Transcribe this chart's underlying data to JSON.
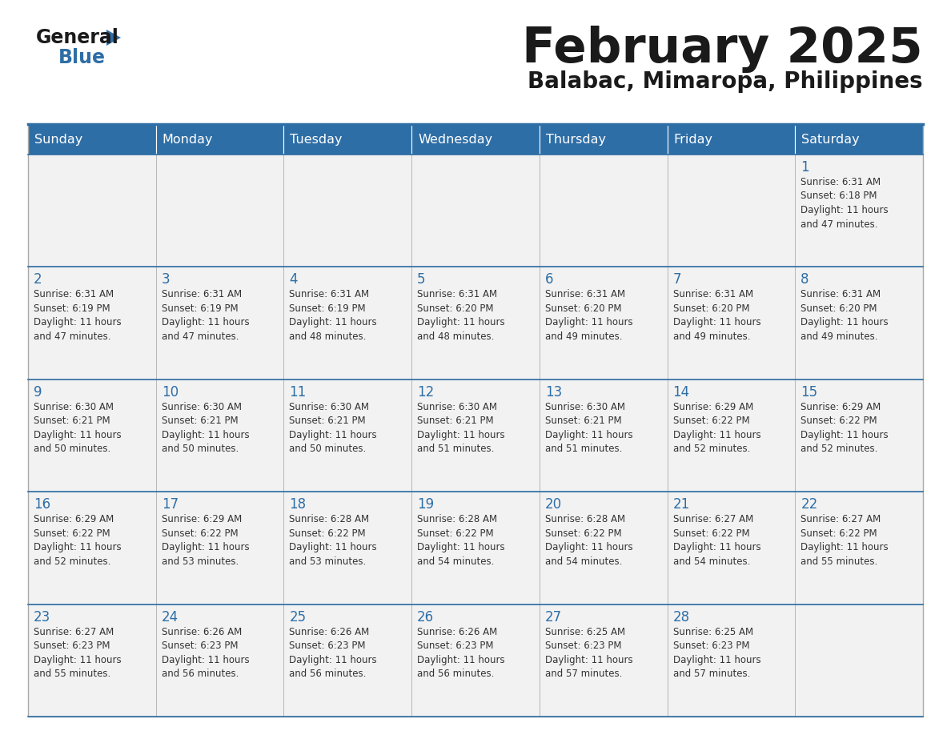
{
  "title": "February 2025",
  "subtitle": "Balabac, Mimaropa, Philippines",
  "header_bg_color": "#2E6EA6",
  "header_text_color": "#FFFFFF",
  "cell_bg_even": "#F0F4F8",
  "cell_bg_odd": "#F0F4F8",
  "title_color": "#1a1a1a",
  "subtitle_color": "#1a1a1a",
  "day_num_color": "#2E6EA6",
  "cell_text_color": "#333333",
  "grid_color": "#AAAAAA",
  "border_color": "#2E6EA6",
  "day_headers": [
    "Sunday",
    "Monday",
    "Tuesday",
    "Wednesday",
    "Thursday",
    "Friday",
    "Saturday"
  ],
  "logo_general_color": "#1a1a1a",
  "logo_blue_color": "#2E6EA6",
  "logo_triangle_color": "#2E6EA6",
  "weeks": [
    [
      {
        "day": null,
        "info": ""
      },
      {
        "day": null,
        "info": ""
      },
      {
        "day": null,
        "info": ""
      },
      {
        "day": null,
        "info": ""
      },
      {
        "day": null,
        "info": ""
      },
      {
        "day": null,
        "info": ""
      },
      {
        "day": 1,
        "info": "Sunrise: 6:31 AM\nSunset: 6:18 PM\nDaylight: 11 hours\nand 47 minutes."
      }
    ],
    [
      {
        "day": 2,
        "info": "Sunrise: 6:31 AM\nSunset: 6:19 PM\nDaylight: 11 hours\nand 47 minutes."
      },
      {
        "day": 3,
        "info": "Sunrise: 6:31 AM\nSunset: 6:19 PM\nDaylight: 11 hours\nand 47 minutes."
      },
      {
        "day": 4,
        "info": "Sunrise: 6:31 AM\nSunset: 6:19 PM\nDaylight: 11 hours\nand 48 minutes."
      },
      {
        "day": 5,
        "info": "Sunrise: 6:31 AM\nSunset: 6:20 PM\nDaylight: 11 hours\nand 48 minutes."
      },
      {
        "day": 6,
        "info": "Sunrise: 6:31 AM\nSunset: 6:20 PM\nDaylight: 11 hours\nand 49 minutes."
      },
      {
        "day": 7,
        "info": "Sunrise: 6:31 AM\nSunset: 6:20 PM\nDaylight: 11 hours\nand 49 minutes."
      },
      {
        "day": 8,
        "info": "Sunrise: 6:31 AM\nSunset: 6:20 PM\nDaylight: 11 hours\nand 49 minutes."
      }
    ],
    [
      {
        "day": 9,
        "info": "Sunrise: 6:30 AM\nSunset: 6:21 PM\nDaylight: 11 hours\nand 50 minutes."
      },
      {
        "day": 10,
        "info": "Sunrise: 6:30 AM\nSunset: 6:21 PM\nDaylight: 11 hours\nand 50 minutes."
      },
      {
        "day": 11,
        "info": "Sunrise: 6:30 AM\nSunset: 6:21 PM\nDaylight: 11 hours\nand 50 minutes."
      },
      {
        "day": 12,
        "info": "Sunrise: 6:30 AM\nSunset: 6:21 PM\nDaylight: 11 hours\nand 51 minutes."
      },
      {
        "day": 13,
        "info": "Sunrise: 6:30 AM\nSunset: 6:21 PM\nDaylight: 11 hours\nand 51 minutes."
      },
      {
        "day": 14,
        "info": "Sunrise: 6:29 AM\nSunset: 6:22 PM\nDaylight: 11 hours\nand 52 minutes."
      },
      {
        "day": 15,
        "info": "Sunrise: 6:29 AM\nSunset: 6:22 PM\nDaylight: 11 hours\nand 52 minutes."
      }
    ],
    [
      {
        "day": 16,
        "info": "Sunrise: 6:29 AM\nSunset: 6:22 PM\nDaylight: 11 hours\nand 52 minutes."
      },
      {
        "day": 17,
        "info": "Sunrise: 6:29 AM\nSunset: 6:22 PM\nDaylight: 11 hours\nand 53 minutes."
      },
      {
        "day": 18,
        "info": "Sunrise: 6:28 AM\nSunset: 6:22 PM\nDaylight: 11 hours\nand 53 minutes."
      },
      {
        "day": 19,
        "info": "Sunrise: 6:28 AM\nSunset: 6:22 PM\nDaylight: 11 hours\nand 54 minutes."
      },
      {
        "day": 20,
        "info": "Sunrise: 6:28 AM\nSunset: 6:22 PM\nDaylight: 11 hours\nand 54 minutes."
      },
      {
        "day": 21,
        "info": "Sunrise: 6:27 AM\nSunset: 6:22 PM\nDaylight: 11 hours\nand 54 minutes."
      },
      {
        "day": 22,
        "info": "Sunrise: 6:27 AM\nSunset: 6:22 PM\nDaylight: 11 hours\nand 55 minutes."
      }
    ],
    [
      {
        "day": 23,
        "info": "Sunrise: 6:27 AM\nSunset: 6:23 PM\nDaylight: 11 hours\nand 55 minutes."
      },
      {
        "day": 24,
        "info": "Sunrise: 6:26 AM\nSunset: 6:23 PM\nDaylight: 11 hours\nand 56 minutes."
      },
      {
        "day": 25,
        "info": "Sunrise: 6:26 AM\nSunset: 6:23 PM\nDaylight: 11 hours\nand 56 minutes."
      },
      {
        "day": 26,
        "info": "Sunrise: 6:26 AM\nSunset: 6:23 PM\nDaylight: 11 hours\nand 56 minutes."
      },
      {
        "day": 27,
        "info": "Sunrise: 6:25 AM\nSunset: 6:23 PM\nDaylight: 11 hours\nand 57 minutes."
      },
      {
        "day": 28,
        "info": "Sunrise: 6:25 AM\nSunset: 6:23 PM\nDaylight: 11 hours\nand 57 minutes."
      },
      {
        "day": null,
        "info": ""
      }
    ]
  ]
}
